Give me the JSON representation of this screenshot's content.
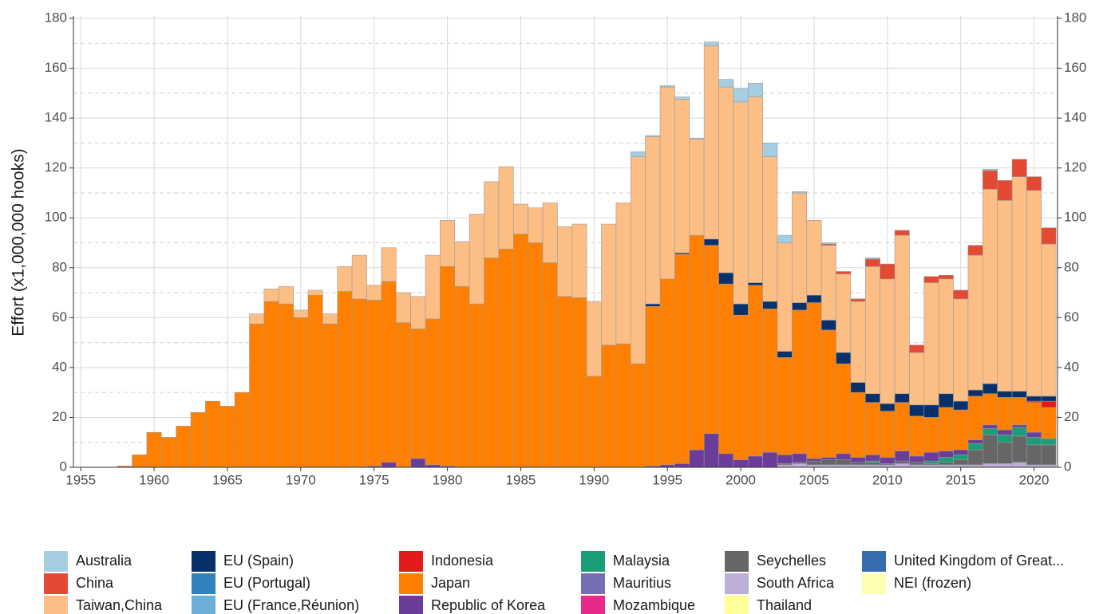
{
  "chart_data": {
    "type": "stacked-bar",
    "y_label": "Effort (x1,000,000 hooks)",
    "x": [
      1958,
      1959,
      1960,
      1961,
      1962,
      1963,
      1964,
      1965,
      1966,
      1967,
      1968,
      1969,
      1970,
      1971,
      1972,
      1973,
      1974,
      1975,
      1976,
      1977,
      1978,
      1979,
      1980,
      1981,
      1982,
      1983,
      1984,
      1985,
      1986,
      1987,
      1988,
      1989,
      1990,
      1991,
      1992,
      1993,
      1994,
      1995,
      1996,
      1997,
      1998,
      1999,
      2000,
      2001,
      2002,
      2003,
      2004,
      2005,
      2006,
      2007,
      2008,
      2009,
      2010,
      2011,
      2012,
      2013,
      2014,
      2015,
      2016,
      2017,
      2018,
      2019,
      2020,
      2021
    ],
    "xlim": [
      1954.5,
      2021.6
    ],
    "xticks": [
      1955,
      1960,
      1965,
      1970,
      1975,
      1980,
      1985,
      1990,
      1995,
      2000,
      2005,
      2010,
      2015,
      2020
    ],
    "ylim": [
      0,
      180
    ],
    "yticks": [
      0,
      20,
      40,
      60,
      80,
      100,
      120,
      140,
      160,
      180
    ],
    "yminorticks": [
      10,
      30,
      50,
      70,
      90,
      110,
      130,
      150,
      170
    ],
    "y2lim": [
      0,
      180
    ],
    "y2ticks": [
      0,
      20,
      40,
      60,
      80,
      100,
      120,
      140,
      160,
      180
    ],
    "grid": true,
    "series": [
      {
        "name": "Australia",
        "color": "#a6cee3",
        "values": [
          0,
          0,
          0,
          0,
          0,
          0,
          0,
          0,
          0,
          0,
          0,
          0,
          0,
          0,
          0,
          0,
          0,
          0,
          0,
          0,
          0,
          0,
          0,
          0,
          0,
          0,
          0,
          0,
          0,
          0,
          0,
          0,
          0,
          0,
          0,
          2,
          0.5,
          0.5,
          1,
          0.5,
          1.5,
          3,
          5.5,
          5.5,
          5.5,
          3,
          0.5,
          0,
          0.5,
          0,
          0,
          0.5,
          0,
          0,
          0,
          0,
          0,
          0,
          0,
          0.5,
          0,
          0,
          0,
          0
        ]
      },
      {
        "name": "China",
        "color": "#e34a33",
        "values": [
          0,
          0,
          0,
          0,
          0,
          0,
          0,
          0,
          0,
          0,
          0,
          0,
          0,
          0,
          0,
          0,
          0,
          0,
          0,
          0,
          0,
          0,
          0,
          0,
          0,
          0,
          0,
          0,
          0,
          0,
          0,
          0,
          0,
          0,
          0,
          0,
          0,
          0,
          0,
          0,
          0,
          0,
          0,
          0,
          0,
          0,
          0,
          0,
          0.5,
          1,
          1,
          3,
          6,
          2,
          3,
          2.5,
          1.5,
          3.5,
          4,
          7.5,
          8,
          7,
          5.5,
          6.5
        ]
      },
      {
        "name": "Taiwan,China",
        "color": "#fdbe85",
        "values": [
          0,
          0,
          0,
          0,
          0,
          0,
          0,
          0,
          0,
          4,
          5,
          7,
          3,
          2,
          4,
          10,
          17.5,
          6,
          13.5,
          12,
          13,
          25.5,
          18.5,
          18,
          36,
          30.5,
          33,
          12,
          14,
          24,
          28,
          29.5,
          30,
          48.5,
          56.5,
          83,
          67,
          77,
          61.5,
          38.5,
          77.5,
          74.5,
          81,
          74.5,
          58,
          43.5,
          44,
          30,
          30,
          31.5,
          32.5,
          51,
          50,
          63.5,
          21,
          49,
          46,
          41,
          54,
          78,
          76.5,
          86,
          82.5,
          61
        ]
      },
      {
        "name": "EU (Spain)",
        "color": "#08306b",
        "values": [
          0,
          0,
          0,
          0,
          0,
          0,
          0,
          0,
          0,
          0,
          0,
          0,
          0,
          0,
          0,
          0,
          0,
          0,
          0,
          0,
          0,
          0,
          0,
          0,
          0,
          0,
          0,
          0,
          0,
          0,
          0,
          0,
          0,
          0,
          0,
          0,
          1,
          0,
          0.5,
          0,
          2.5,
          4.5,
          4.5,
          1,
          3,
          2.5,
          3,
          3,
          4,
          4.5,
          4,
          3.5,
          3,
          3.5,
          4.5,
          5,
          5.5,
          3.5,
          2.5,
          4,
          2.5,
          2.5,
          2,
          2
        ]
      },
      {
        "name": "EU (Portugal)",
        "color": "#3182bd",
        "values": [
          0,
          0,
          0,
          0,
          0,
          0,
          0,
          0,
          0,
          0,
          0,
          0,
          0,
          0,
          0,
          0,
          0,
          0,
          0,
          0,
          0,
          0,
          0,
          0,
          0,
          0,
          0,
          0,
          0,
          0,
          0,
          0,
          0,
          0,
          0,
          0,
          0,
          0,
          0,
          0,
          0,
          0,
          0,
          0,
          0,
          0,
          0,
          0,
          0,
          0,
          0,
          0,
          0,
          0,
          0,
          0,
          0,
          0,
          0,
          0,
          0,
          0,
          0,
          0
        ]
      },
      {
        "name": "EU (France,Réunion)",
        "color": "#6baed6",
        "values": [
          0,
          0,
          0,
          0,
          0,
          0,
          0,
          0,
          0,
          0,
          0,
          0,
          0,
          0,
          0,
          0,
          0,
          0,
          0,
          0,
          0,
          0,
          0,
          0,
          0,
          0,
          0,
          0,
          0,
          0,
          0,
          0,
          0,
          0,
          0,
          0,
          0,
          0,
          0,
          0,
          0,
          0,
          0,
          0,
          0,
          0,
          0,
          0,
          0,
          0,
          0,
          0,
          0,
          0,
          0,
          0,
          0,
          0,
          0,
          0,
          0,
          0,
          0,
          0
        ]
      },
      {
        "name": "Indonesia",
        "color": "#e31a1c",
        "values": [
          0,
          0,
          0,
          0,
          0,
          0,
          0,
          0,
          0,
          0,
          0,
          0,
          0,
          0,
          0,
          0,
          0,
          0,
          0,
          0,
          0,
          0,
          0,
          0,
          0,
          0,
          0,
          0,
          0,
          0,
          0,
          0,
          0,
          0,
          0,
          0,
          0,
          0,
          0,
          0,
          0,
          0,
          0,
          0,
          0,
          0,
          0,
          0,
          0,
          0,
          0,
          0,
          0,
          0,
          0,
          0,
          0,
          0,
          0,
          0,
          0,
          0,
          0.5,
          2.5
        ]
      },
      {
        "name": "Japan",
        "color": "#ff7f00",
        "values": [
          0.5,
          5,
          14,
          12,
          16.5,
          22,
          26.5,
          24.5,
          30,
          57.5,
          66.5,
          65.5,
          60,
          69,
          57.5,
          70.5,
          67.5,
          66.5,
          72.5,
          58,
          52,
          58.5,
          80,
          72.5,
          65.5,
          84,
          87.5,
          93.5,
          90,
          82,
          68.5,
          68,
          36.5,
          49,
          49.5,
          41.5,
          64,
          74.5,
          84,
          86,
          75.5,
          68,
          58,
          68.5,
          57.5,
          39,
          57.5,
          62.5,
          51,
          36,
          26,
          21,
          18.5,
          19.5,
          16,
          14,
          17.5,
          16,
          17.5,
          12.5,
          13,
          11,
          12,
          12.5
        ]
      },
      {
        "name": "Republic of Korea",
        "color": "#6a3d9a",
        "values": [
          0,
          0,
          0,
          0,
          0,
          0,
          0,
          0,
          0,
          0,
          0,
          0,
          0,
          0,
          0,
          0,
          0,
          0.5,
          2,
          0,
          3.5,
          1,
          0.5,
          0,
          0,
          0,
          0,
          0,
          0,
          0,
          0,
          0,
          0,
          0,
          0,
          0,
          0.5,
          1,
          1.5,
          7,
          13.5,
          5.5,
          3,
          4.5,
          6,
          3.5,
          3.5,
          1,
          1,
          2.5,
          2,
          2.5,
          2.5,
          4,
          2.5,
          3.5,
          2.5,
          2,
          1.5,
          1.5,
          2,
          1,
          2,
          0
        ]
      },
      {
        "name": "Malaysia",
        "color": "#1b9e77",
        "values": [
          0,
          0,
          0,
          0,
          0,
          0,
          0,
          0,
          0,
          0,
          0,
          0,
          0,
          0,
          0,
          0,
          0,
          0,
          0,
          0,
          0,
          0,
          0,
          0,
          0,
          0,
          0,
          0,
          0,
          0,
          0,
          0,
          0,
          0,
          0,
          0,
          0,
          0,
          0,
          0,
          0,
          0,
          0,
          0,
          0,
          0,
          0,
          0,
          0,
          0,
          0,
          0.5,
          0,
          0,
          0,
          1,
          2,
          2,
          2.5,
          2.5,
          3,
          3.5,
          3,
          2.5
        ]
      },
      {
        "name": "Mauritius",
        "color": "#7570b3",
        "values": [
          0,
          0,
          0,
          0,
          0,
          0,
          0,
          0,
          0,
          0,
          0,
          0,
          0,
          0,
          0,
          0,
          0,
          0,
          0,
          0,
          0,
          0,
          0,
          0,
          0,
          0,
          0,
          0,
          0,
          0,
          0,
          0,
          0,
          0,
          0,
          0,
          0,
          0,
          0,
          0,
          0,
          0,
          0,
          0,
          0,
          0,
          0,
          0,
          0,
          0,
          0,
          0,
          0,
          0,
          0,
          0,
          0,
          0,
          0,
          0,
          0,
          0,
          0,
          0
        ]
      },
      {
        "name": "Mozambique",
        "color": "#e7298a",
        "values": [
          0,
          0,
          0,
          0,
          0,
          0,
          0,
          0,
          0,
          0,
          0,
          0,
          0,
          0,
          0,
          0,
          0,
          0,
          0,
          0,
          0,
          0,
          0,
          0,
          0,
          0,
          0,
          0,
          0,
          0,
          0,
          0,
          0,
          0,
          0,
          0,
          0,
          0,
          0,
          0,
          0,
          0,
          0,
          0,
          0,
          0,
          0,
          0,
          0,
          0,
          0,
          0,
          0,
          0,
          0,
          0,
          0,
          0,
          0,
          0,
          0,
          0,
          0,
          0
        ]
      },
      {
        "name": "Seychelles",
        "color": "#666666",
        "values": [
          0,
          0,
          0,
          0,
          0,
          0,
          0,
          0,
          0,
          0,
          0,
          0,
          0,
          0,
          0,
          0,
          0,
          0,
          0,
          0,
          0,
          0,
          0,
          0,
          0,
          0,
          0,
          0,
          0,
          0,
          0,
          0,
          0,
          0,
          0,
          0,
          0,
          0,
          0,
          0,
          0,
          0,
          0,
          0,
          0,
          0.5,
          0.5,
          1.5,
          2,
          2,
          1,
          1,
          0.5,
          1,
          1,
          0.5,
          1,
          2,
          6,
          11.5,
          8.5,
          10.5,
          8,
          8
        ]
      },
      {
        "name": "South Africa",
        "color": "#bcaed6",
        "values": [
          0,
          0,
          0,
          0,
          0,
          0,
          0,
          0,
          0,
          0,
          0,
          0,
          0,
          0,
          0,
          0,
          0,
          0,
          0,
          0,
          0,
          0,
          0,
          0,
          0,
          0,
          0,
          0,
          0,
          0,
          0,
          0,
          0,
          0,
          0,
          0,
          0,
          0,
          0,
          0,
          0,
          0,
          0,
          0,
          0,
          1,
          1.5,
          1,
          1,
          1,
          1,
          1,
          1,
          1.5,
          1,
          1,
          1,
          1,
          1,
          1.5,
          1.5,
          2,
          1,
          1
        ]
      },
      {
        "name": "Thailand",
        "color": "#ffff99",
        "values": [
          0,
          0,
          0,
          0,
          0,
          0,
          0,
          0,
          0,
          0,
          0,
          0,
          0,
          0,
          0,
          0,
          0,
          0,
          0,
          0,
          0,
          0,
          0,
          0,
          0,
          0,
          0,
          0,
          0,
          0,
          0,
          0,
          0,
          0,
          0,
          0,
          0,
          0,
          0,
          0,
          0,
          0,
          0,
          0,
          0,
          0,
          0,
          0,
          0,
          0,
          0,
          0,
          0,
          0,
          0,
          0,
          0,
          0,
          0,
          0,
          0,
          0,
          0,
          0
        ]
      },
      {
        "name": "United Kingdom of Great...",
        "color": "#386cb0",
        "values": [
          0,
          0,
          0,
          0,
          0,
          0,
          0,
          0,
          0,
          0,
          0,
          0,
          0,
          0,
          0,
          0,
          0,
          0,
          0,
          0,
          0,
          0,
          0,
          0,
          0,
          0,
          0,
          0,
          0,
          0,
          0,
          0,
          0,
          0,
          0,
          0,
          0,
          0,
          0,
          0,
          0,
          0,
          0,
          0,
          0,
          0,
          0,
          0,
          0,
          0,
          0,
          0,
          0,
          0,
          0,
          0,
          0,
          0,
          0,
          0,
          0,
          0,
          0,
          0
        ]
      },
      {
        "name": "NEI (frozen)",
        "color": "#ffffb3",
        "values": [
          0,
          0,
          0,
          0,
          0,
          0,
          0,
          0,
          0,
          0,
          0,
          0,
          0,
          0,
          0,
          0,
          0,
          0,
          0,
          0,
          0,
          0,
          0,
          0,
          0,
          0,
          0,
          0,
          0,
          0,
          0,
          0,
          0,
          0,
          0,
          0,
          0,
          0,
          0,
          0,
          0,
          0,
          0,
          0,
          0,
          0,
          0,
          0,
          0,
          0,
          0,
          0,
          0,
          0,
          0,
          0,
          0,
          0,
          0,
          0,
          0,
          0,
          0,
          0
        ]
      }
    ]
  }
}
